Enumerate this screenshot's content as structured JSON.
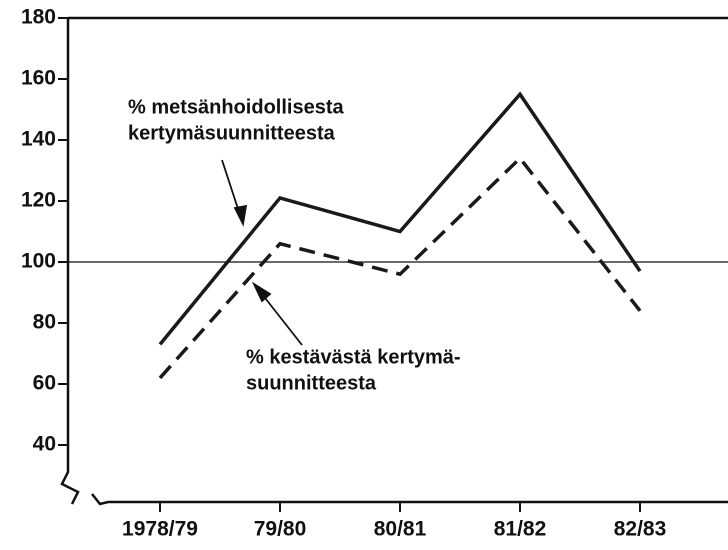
{
  "chart_data": {
    "type": "line",
    "categories": [
      "1978/79",
      "79/80",
      "80/81",
      "81/82",
      "82/83"
    ],
    "series": [
      {
        "color": "#1a1a1a",
        "dash": "solid",
        "values": [
          73,
          121,
          110,
          155,
          97
        ]
      },
      {
        "color": "#1a1a1a",
        "dash": "dashed",
        "values": [
          62,
          106,
          96,
          134,
          84
        ]
      }
    ],
    "ylim": [
      40,
      180
    ],
    "yticks": [
      40,
      60,
      80,
      100,
      120,
      140,
      160,
      180
    ],
    "reference_line": 100,
    "annotations": [
      {
        "lines": [
          "% metsänhoidollisesta",
          "kertymäsuunnitteesta"
        ]
      },
      {
        "lines": [
          "% kestävästä kertymä-",
          "suunnitteesta"
        ]
      }
    ]
  }
}
